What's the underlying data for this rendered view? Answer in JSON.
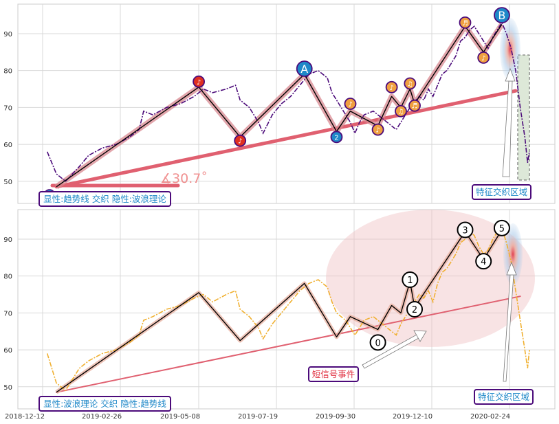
{
  "chart_data": [
    {
      "type": "line",
      "panel": "top",
      "ylim": [
        44,
        98
      ],
      "yticks": [
        50,
        60,
        70,
        80,
        90
      ],
      "grid": true,
      "series": [
        {
          "role": "price",
          "style": "dash-dot",
          "color": "#4b0a7a",
          "points": [
            [
              1,
              58
            ],
            [
              3,
              52
            ],
            [
              5,
              50
            ],
            [
              8,
              54
            ],
            [
              10,
              57
            ],
            [
              13,
              59
            ],
            [
              16,
              60
            ],
            [
              19,
              62
            ],
            [
              21,
              64
            ],
            [
              22,
              69
            ],
            [
              24,
              68
            ],
            [
              27,
              70
            ],
            [
              30,
              71
            ],
            [
              33,
              73
            ],
            [
              35,
              75
            ],
            [
              37,
              74
            ],
            [
              40,
              75
            ],
            [
              42,
              76
            ],
            [
              43,
              72
            ],
            [
              45,
              70
            ],
            [
              47,
              66
            ],
            [
              48,
              63
            ],
            [
              50,
              68
            ],
            [
              52,
              71
            ],
            [
              54,
              73
            ],
            [
              56,
              76
            ],
            [
              58,
              79
            ],
            [
              60,
              80
            ],
            [
              62,
              78
            ],
            [
              63,
              74
            ],
            [
              64,
              72
            ],
            [
              66,
              68
            ],
            [
              67,
              66
            ],
            [
              68,
              63
            ],
            [
              69,
              66
            ],
            [
              70,
              68
            ],
            [
              72,
              69
            ],
            [
              74,
              67
            ],
            [
              76,
              65
            ],
            [
              77,
              64
            ],
            [
              78,
              66
            ],
            [
              80,
              70
            ],
            [
              82,
              73
            ],
            [
              83,
              72
            ],
            [
              84,
              75
            ],
            [
              85,
              73
            ],
            [
              86,
              76
            ],
            [
              87,
              79
            ],
            [
              88,
              80
            ],
            [
              89,
              82
            ],
            [
              90,
              84
            ],
            [
              91,
              88
            ],
            [
              92,
              89
            ],
            [
              93,
              91
            ],
            [
              94,
              92
            ],
            [
              95,
              90
            ],
            [
              96,
              88
            ],
            [
              97,
              86
            ],
            [
              98,
              89
            ],
            [
              99,
              91
            ],
            [
              100,
              93
            ],
            [
              101,
              90
            ],
            [
              102,
              86
            ],
            [
              103,
              80
            ],
            [
              104,
              70
            ],
            [
              105,
              62
            ],
            [
              105.6,
              55
            ],
            [
              106,
              58
            ]
          ]
        },
        {
          "role": "wave-path",
          "color": "#000000",
          "points": [
            [
              3,
              48.5
            ],
            [
              34,
              75.5
            ],
            [
              43,
              62
            ],
            [
              57,
              79
            ],
            [
              64,
              63.5
            ],
            [
              67,
              69
            ],
            [
              73,
              65
            ],
            [
              76,
              73
            ],
            [
              78,
              70
            ],
            [
              80,
              75
            ],
            [
              81,
              71
            ],
            [
              92,
              92
            ],
            [
              96,
              85
            ],
            [
              100,
              92.5
            ]
          ]
        },
        {
          "role": "trendline",
          "color": "#e06070",
          "points": [
            [
              3,
              48.5
            ],
            [
              103,
              74.5
            ]
          ]
        }
      ],
      "markers": [
        {
          "x": 34,
          "y": 77,
          "symbol": "♪",
          "color": "#e03020"
        },
        {
          "x": 43,
          "y": 61,
          "symbol": "♪",
          "color": "#e03020"
        },
        {
          "x": 57,
          "y": 80.5,
          "symbol": "A",
          "color": "#1e88c8"
        },
        {
          "x": 64,
          "y": 62,
          "symbol": "2",
          "color": "#1e88c8"
        },
        {
          "x": 67,
          "y": 71,
          "symbol": "♪",
          "color": "#f0a040"
        },
        {
          "x": 73,
          "y": 64,
          "symbol": "♪",
          "color": "#f0a040"
        },
        {
          "x": 76,
          "y": 75.5,
          "symbol": "♪",
          "color": "#f0a040"
        },
        {
          "x": 78,
          "y": 69,
          "symbol": "♫",
          "color": "#f0a040"
        },
        {
          "x": 80,
          "y": 76.5,
          "symbol": "♫",
          "color": "#f0a040"
        },
        {
          "x": 81,
          "y": 70.5,
          "symbol": "♬",
          "color": "#f0a040"
        },
        {
          "x": 92,
          "y": 93,
          "symbol": "♬",
          "color": "#f0a040"
        },
        {
          "x": 96,
          "y": 83.5,
          "symbol": "♪",
          "color": "#f0a040"
        },
        {
          "x": 100,
          "y": 95,
          "symbol": "B",
          "color": "#1e88c8"
        }
      ],
      "annotations": {
        "angle_label": "∡30.7˚",
        "zone_label": "特征交织区域",
        "corner_label": "显性:趋势线 交织 隐性:波浪理论"
      }
    },
    {
      "type": "line",
      "panel": "bottom",
      "ylim": [
        44,
        98
      ],
      "yticks": [
        50,
        60,
        70,
        80,
        90
      ],
      "grid": true,
      "xticks": [
        "2018-12-12",
        "2019-02-26",
        "2019-05-08",
        "2019-07-19",
        "2019-09-30",
        "2019-12-10",
        "2020-02-24"
      ],
      "series": [
        {
          "role": "price",
          "style": "dash-dot",
          "color": "#f0b030",
          "points": [
            [
              1,
              59
            ],
            [
              3,
              51
            ],
            [
              5,
              49
            ],
            [
              8,
              55
            ],
            [
              10,
              57
            ],
            [
              13,
              59
            ],
            [
              16,
              60
            ],
            [
              19,
              62
            ],
            [
              21,
              64
            ],
            [
              22,
              68
            ],
            [
              24,
              69
            ],
            [
              27,
              71
            ],
            [
              30,
              72
            ],
            [
              33,
              74
            ],
            [
              35,
              75
            ],
            [
              37,
              73
            ],
            [
              40,
              75
            ],
            [
              42,
              76
            ],
            [
              43,
              71
            ],
            [
              45,
              69
            ],
            [
              47,
              66
            ],
            [
              48,
              63
            ],
            [
              50,
              67
            ],
            [
              52,
              70
            ],
            [
              54,
              73
            ],
            [
              56,
              76
            ],
            [
              58,
              78
            ],
            [
              60,
              79
            ],
            [
              62,
              77
            ],
            [
              63,
              73
            ],
            [
              64,
              70
            ],
            [
              66,
              68
            ],
            [
              67,
              66
            ],
            [
              68,
              64
            ],
            [
              69,
              66
            ],
            [
              70,
              68
            ],
            [
              72,
              69
            ],
            [
              74,
              67
            ],
            [
              76,
              65
            ],
            [
              77,
              64
            ],
            [
              78,
              67
            ],
            [
              80,
              71
            ],
            [
              82,
              75
            ],
            [
              83,
              74
            ],
            [
              84,
              76
            ],
            [
              85,
              73
            ],
            [
              86,
              78
            ],
            [
              87,
              81
            ],
            [
              88,
              82
            ],
            [
              89,
              84
            ],
            [
              90,
              86
            ],
            [
              91,
              89
            ],
            [
              92,
              90
            ],
            [
              93,
              92
            ],
            [
              94,
              91
            ],
            [
              95,
              88
            ],
            [
              96,
              86
            ],
            [
              97,
              87
            ],
            [
              98,
              90
            ],
            [
              99,
              92
            ],
            [
              100,
              93
            ],
            [
              101,
              89
            ],
            [
              102,
              84
            ],
            [
              103,
              76
            ],
            [
              104,
              68
            ],
            [
              105,
              60
            ],
            [
              105.6,
              55
            ],
            [
              106,
              60
            ]
          ]
        },
        {
          "role": "wave-path",
          "color": "#000000",
          "points": [
            [
              3,
              48.5
            ],
            [
              34,
              75.5
            ],
            [
              43,
              62.5
            ],
            [
              57,
              78
            ],
            [
              64,
              63.5
            ],
            [
              67,
              69
            ],
            [
              73,
              65.5
            ],
            [
              76,
              72
            ],
            [
              78,
              70
            ],
            [
              80,
              78.5
            ],
            [
              81,
              71.5
            ],
            [
              92,
              92
            ],
            [
              96,
              84.5
            ],
            [
              100,
              92.5
            ]
          ]
        },
        {
          "role": "trendline",
          "color": "#e06070",
          "points": [
            [
              3,
              48.5
            ],
            [
              104,
              74.5
            ]
          ]
        }
      ],
      "wave_labels": [
        {
          "x": 73,
          "y": 62,
          "label": "0"
        },
        {
          "x": 80,
          "y": 79,
          "label": "1"
        },
        {
          "x": 81,
          "y": 71,
          "label": "2"
        },
        {
          "x": 92,
          "y": 92.5,
          "label": "3"
        },
        {
          "x": 96,
          "y": 84,
          "label": "4"
        },
        {
          "x": 100,
          "y": 93,
          "label": "5"
        }
      ],
      "annotations": {
        "event_label": "短信号事件",
        "zone_label": "特征交织区域",
        "corner_label": "显性:波浪理论 交织 隐性:趋势线"
      }
    }
  ]
}
